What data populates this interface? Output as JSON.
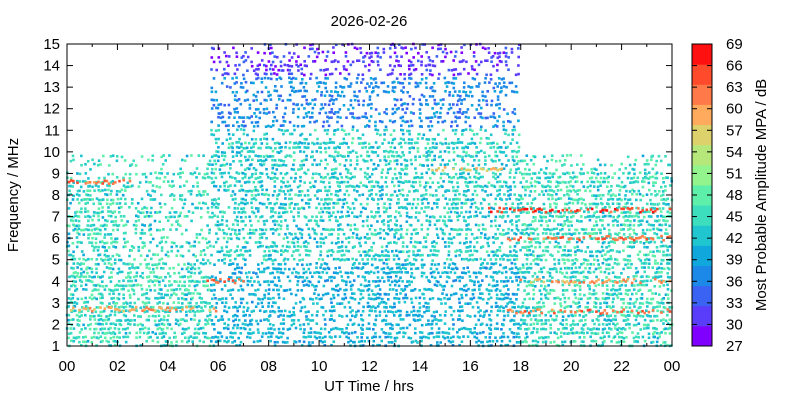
{
  "chart_data": {
    "type": "heatmap",
    "title": "2026-02-26",
    "xlabel": "UT Time / hrs",
    "ylabel": "Frequency / MHz",
    "xlim": [
      0,
      24
    ],
    "ylim": [
      1,
      15
    ],
    "x_ticks": [
      "00",
      "02",
      "04",
      "06",
      "08",
      "10",
      "12",
      "14",
      "16",
      "18",
      "20",
      "22",
      "00"
    ],
    "y_ticks": [
      "1",
      "2",
      "3",
      "4",
      "5",
      "6",
      "7",
      "8",
      "9",
      "10",
      "11",
      "12",
      "13",
      "14",
      "15"
    ],
    "colorbar": {
      "label": "Most Probable Amplitude MPA / dB",
      "range": [
        27,
        69
      ],
      "ticks": [
        "27",
        "30",
        "33",
        "36",
        "39",
        "42",
        "45",
        "48",
        "51",
        "54",
        "57",
        "60",
        "63",
        "66",
        "69"
      ],
      "colors": [
        "#7f00ff",
        "#5a3dfb",
        "#3a62f3",
        "#1c88e7",
        "#10a8dc",
        "#1fc6cf",
        "#3cdebd",
        "#5ef0aa",
        "#93f38c",
        "#b6e77b",
        "#dcd16b",
        "#ffaa5c",
        "#ff7a48",
        "#ff4a2c",
        "#ff1010"
      ]
    },
    "grid": false,
    "data_summary": [
      {
        "time_range": [
          0,
          5.7
        ],
        "freq_range": [
          1,
          10
        ],
        "typical_dB": [
          39,
          48
        ],
        "peak_dB": 66
      },
      {
        "time_range": [
          5.7,
          18
        ],
        "freq_range": [
          1,
          15
        ],
        "typical_dB": [
          36,
          45
        ],
        "peak_dB": 66
      },
      {
        "time_range": [
          5.7,
          18
        ],
        "freq_range": [
          13.5,
          15
        ],
        "typical_dB": [
          27,
          33
        ],
        "peak_dB": 36
      },
      {
        "time_range": [
          18,
          24
        ],
        "freq_range": [
          1,
          10
        ],
        "typical_dB": [
          39,
          51
        ],
        "peak_dB": 69
      }
    ],
    "red_bands": [
      {
        "time_range": [
          0,
          2.6
        ],
        "freq": 8.6,
        "dB": 66
      },
      {
        "time_range": [
          0,
          6
        ],
        "freq": 2.7,
        "dB": 63
      },
      {
        "time_range": [
          16.5,
          24
        ],
        "freq": 7.3,
        "dB": 69
      },
      {
        "time_range": [
          17.5,
          24
        ],
        "freq": 6.0,
        "dB": 66
      },
      {
        "time_range": [
          17.5,
          24
        ],
        "freq": 2.6,
        "dB": 66
      },
      {
        "time_range": [
          18,
          24
        ],
        "freq": 4.0,
        "dB": 63
      },
      {
        "time_range": [
          5.5,
          7.2
        ],
        "freq": 4.0,
        "dB": 66
      },
      {
        "time_range": [
          14.5,
          17.5
        ],
        "freq": 9.2,
        "dB": 60
      }
    ]
  }
}
